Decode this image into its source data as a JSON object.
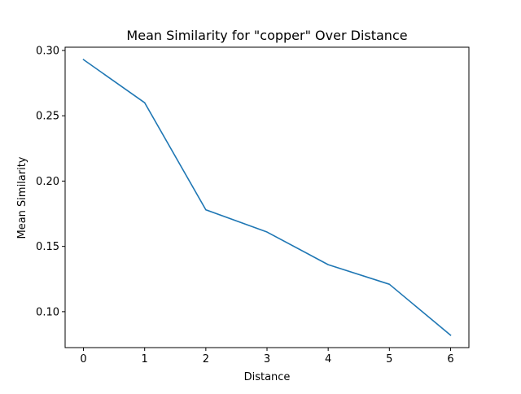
{
  "chart_data": {
    "type": "line",
    "title": "Mean Similarity for \"copper\" Over Distance",
    "xlabel": "Distance",
    "ylabel": "Mean Similarity",
    "x": [
      0,
      1,
      2,
      3,
      4,
      5,
      6
    ],
    "series": [
      {
        "values": [
          0.293,
          0.26,
          0.178,
          0.161,
          0.136,
          0.121,
          0.082
        ],
        "color": "#1f77b4"
      }
    ],
    "xlim": [
      -0.3,
      6.3
    ],
    "ylim": [
      0.0725,
      0.3025
    ],
    "x_ticks": [
      0,
      1,
      2,
      3,
      4,
      5,
      6
    ],
    "x_tick_labels": [
      "0",
      "1",
      "2",
      "3",
      "4",
      "5",
      "6"
    ],
    "y_ticks": [
      0.1,
      0.15,
      0.2,
      0.25,
      0.3
    ],
    "y_tick_labels": [
      "0.10",
      "0.15",
      "0.20",
      "0.25",
      "0.30"
    ],
    "grid": false,
    "legend": "none"
  }
}
